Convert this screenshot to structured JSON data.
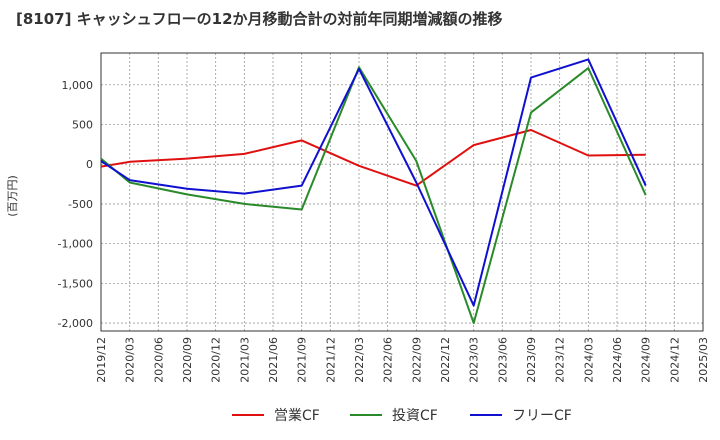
{
  "chart_data": {
    "type": "line",
    "title": "[8107]  キャッシュフローの12か月移動合計の対前年同期増減額の推移",
    "ylabel": "(百万円)",
    "xlabel": "",
    "ylim": [
      -2100,
      1400
    ],
    "yticks": [
      1000,
      500,
      0,
      -500,
      -1000,
      -1500,
      -2000
    ],
    "ytick_labels": [
      "1,000",
      "500",
      "0",
      "-500",
      "-1,000",
      "-1,500",
      "-2,000"
    ],
    "x_range": [
      "2019-12",
      "2025-03"
    ],
    "xtick_labels": [
      "2019/12",
      "2020/03",
      "2020/06",
      "2020/09",
      "2020/12",
      "2021/03",
      "2021/06",
      "2021/09",
      "2021/12",
      "2022/03",
      "2022/06",
      "2022/09",
      "2022/12",
      "2023/03",
      "2023/06",
      "2023/09",
      "2023/12",
      "2024/03",
      "2024/06",
      "2024/09",
      "2024/12",
      "2025/03"
    ],
    "grid": true,
    "legend_position": "bottom",
    "series": [
      {
        "name": "営業CF",
        "color": "#e01010",
        "points": [
          [
            "2019-12",
            -30
          ],
          [
            "2020-03",
            30
          ],
          [
            "2020-09",
            70
          ],
          [
            "2021-03",
            130
          ],
          [
            "2021-09",
            300
          ],
          [
            "2022-03",
            -20
          ],
          [
            "2022-09",
            -270
          ],
          [
            "2023-03",
            240
          ],
          [
            "2023-09",
            430
          ],
          [
            "2024-03",
            110
          ],
          [
            "2024-09",
            120
          ]
        ]
      },
      {
        "name": "投資CF",
        "color": "#2a8a2a",
        "points": [
          [
            "2019-12",
            70
          ],
          [
            "2020-03",
            -230
          ],
          [
            "2020-09",
            -380
          ],
          [
            "2021-03",
            -500
          ],
          [
            "2021-09",
            -570
          ],
          [
            "2022-03",
            1220
          ],
          [
            "2022-09",
            40
          ],
          [
            "2023-03",
            -2000
          ],
          [
            "2023-09",
            650
          ],
          [
            "2024-03",
            1210
          ],
          [
            "2024-09",
            -390
          ]
        ]
      },
      {
        "name": "フリーCF",
        "color": "#1010d0",
        "points": [
          [
            "2019-12",
            40
          ],
          [
            "2020-03",
            -200
          ],
          [
            "2020-09",
            -310
          ],
          [
            "2021-03",
            -370
          ],
          [
            "2021-09",
            -270
          ],
          [
            "2022-03",
            1200
          ],
          [
            "2022-09",
            -230
          ],
          [
            "2023-03",
            -1780
          ],
          [
            "2023-09",
            1090
          ],
          [
            "2024-03",
            1320
          ],
          [
            "2024-09",
            -270
          ]
        ]
      }
    ]
  }
}
